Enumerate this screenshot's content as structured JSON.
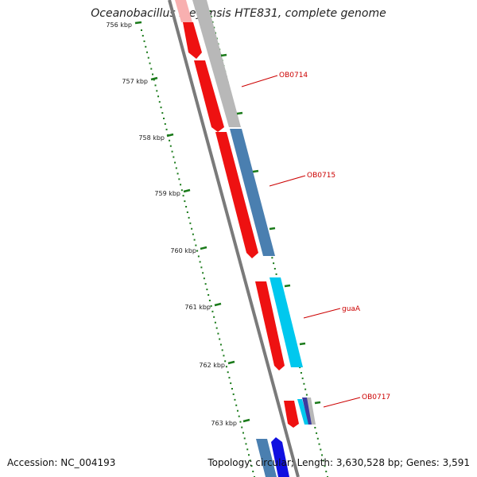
{
  "title": "Oceanobacillus iheyensis HTE831, complete genome",
  "accession": "Accession: NC_004193",
  "summary": "Topology: circular; Length: 3,630,528 bp; Genes: 3,591",
  "ticks": [
    "756 kbp",
    "757 kbp",
    "758 kbp",
    "759 kbp",
    "760 kbp",
    "761 kbp",
    "762 kbp",
    "763 kbp"
  ],
  "genes": [
    {
      "label": "OB0714",
      "color": "#b8b8b8"
    },
    {
      "label": "OB0715",
      "color": "#4a7fb0"
    },
    {
      "label": "guaA",
      "color": "#00c8ee"
    },
    {
      "label": "OB0717",
      "color": "#3a3aa0"
    }
  ],
  "colors": {
    "backbone": "#7a7a7a",
    "cds": "#ee1111",
    "tick": "#1a7a1a",
    "label": "#cc0000",
    "blue_feature": "#1010e0",
    "light_red": "#f8b0b0"
  }
}
